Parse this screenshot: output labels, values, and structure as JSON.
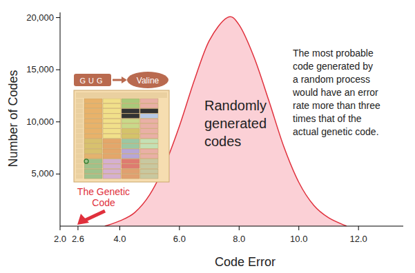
{
  "chart_data": {
    "type": "area",
    "x_label": "Code Error",
    "y_label": "Number of Codes",
    "xlim": [
      2.0,
      13.5
    ],
    "ylim": [
      0,
      20500
    ],
    "xticks": [
      {
        "value": 2.0,
        "label": "2.0"
      },
      2.6,
      {
        "value": 4.0,
        "label": "4.0"
      },
      {
        "value": 6.0,
        "label": "6.0"
      },
      {
        "value": 8.0,
        "label": "8.0"
      },
      {
        "value": 10.0,
        "label": "10.0"
      },
      {
        "value": 12.0,
        "label": "12.0"
      }
    ],
    "yticks": [
      {
        "value": 5000,
        "label": "5,000"
      },
      {
        "value": 10000,
        "label": "10,000"
      },
      {
        "value": 15000,
        "label": "15,000"
      },
      {
        "value": 20000,
        "label": "20,000"
      }
    ],
    "grid": false,
    "series": [
      {
        "name": "Randomly generated codes",
        "color": "#fbd0d6",
        "x": [
          3.5,
          4.0,
          4.5,
          5.0,
          5.5,
          6.0,
          6.5,
          7.0,
          7.6,
          8.0,
          8.5,
          9.0,
          9.5,
          10.0,
          10.5,
          11.0,
          11.6
        ],
        "values": [
          0,
          500,
          1300,
          3000,
          5800,
          9600,
          14000,
          17800,
          20000,
          19300,
          16200,
          12000,
          7600,
          4200,
          2000,
          800,
          0
        ]
      }
    ],
    "annotations": [
      {
        "text_lines": [
          "The most probable",
          "code generated by",
          "a random process",
          "would have an error",
          "rate more than three",
          "times that of the",
          "actual genetic code."
        ]
      }
    ],
    "inset": {
      "title_lines": [
        "The Genetic",
        "Code"
      ],
      "codon": "GUG",
      "amino_acid": "Valine",
      "color": "#e0303c"
    }
  }
}
